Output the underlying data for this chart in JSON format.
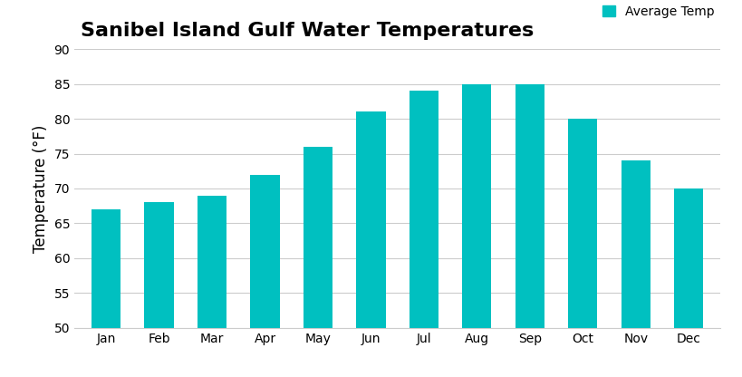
{
  "title": "Sanibel Island Gulf Water Temperatures",
  "title_fontsize": 16,
  "title_fontweight": "bold",
  "ylabel": "Temperature (°F)",
  "ylabel_fontsize": 12,
  "months": [
    "Jan",
    "Feb",
    "Mar",
    "Apr",
    "May",
    "Jun",
    "Jul",
    "Aug",
    "Sep",
    "Oct",
    "Nov",
    "Dec"
  ],
  "values": [
    67,
    68,
    69,
    72,
    76,
    81,
    84,
    85,
    85,
    80,
    74,
    70
  ],
  "bar_color": "#00C0C0",
  "ylim": [
    50,
    90
  ],
  "yticks": [
    50,
    55,
    60,
    65,
    70,
    75,
    80,
    85,
    90
  ],
  "grid_color": "#cccccc",
  "legend_label": "Average Temp",
  "background_color": "#ffffff",
  "tick_label_fontsize": 10,
  "bar_width": 0.55
}
